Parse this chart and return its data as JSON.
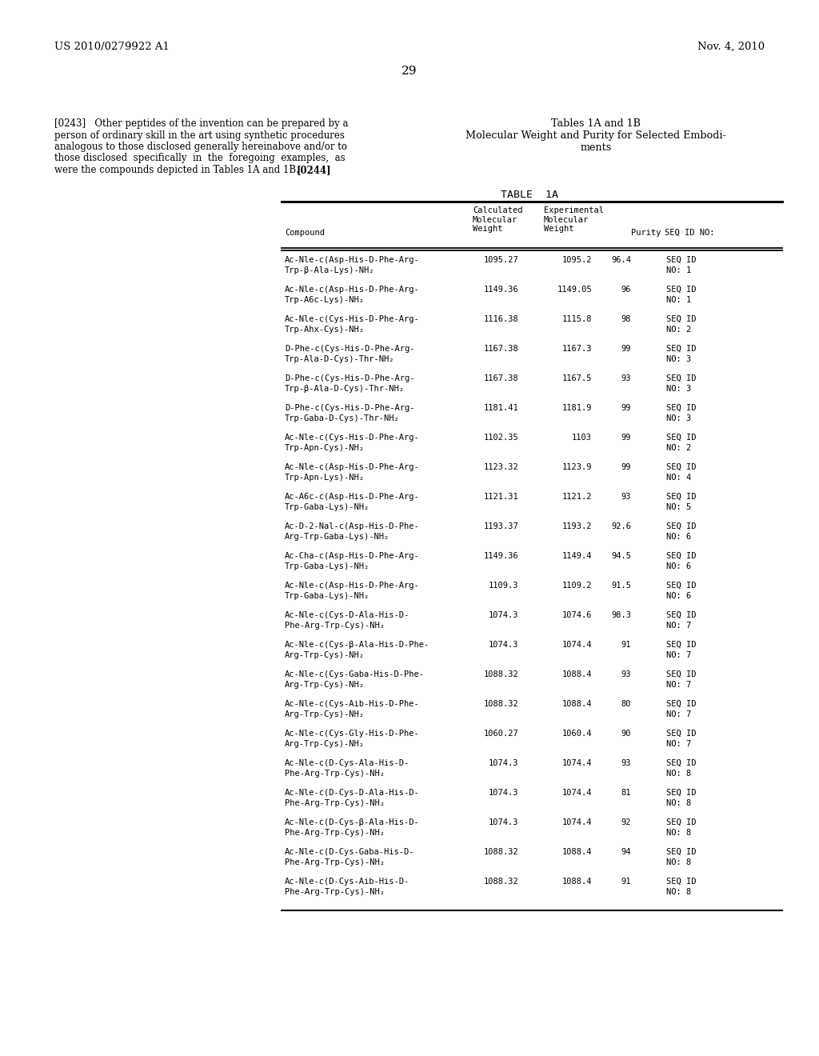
{
  "header_left": "US 2010/0279922 A1",
  "header_right": "Nov. 4, 2010",
  "page_number": "29",
  "para243_lines": [
    "[0243]   Other peptides of the invention can be prepared by a",
    "person of ordinary skill in the art using synthetic procedures",
    "analogous to those disclosed generally hereinabove and/or to",
    "those disclosed  specifically  in  the  foregoing  examples,  as",
    "were the compounds depicted in Tables 1A and 1B."
  ],
  "para244": "[0244]",
  "right_title1": "Tables 1A and 1B",
  "right_title2a": "Molecular Weight and Purity for Selected Embodi-",
  "right_title2b": "ments",
  "table_title": "TABLE  1A",
  "rows": [
    [
      "Ac-Nle-c(Asp-His-D-Phe-Arg-",
      "Trp-β-Ala-Lys)-NH₂",
      "1095.27",
      "1095.2",
      "96.4",
      "SEQ ID",
      "NO: 1"
    ],
    [
      "Ac-Nle-c(Asp-His-D-Phe-Arg-",
      "Trp-A6c-Lys)-NH₂",
      "1149.36",
      "1149.05",
      "96",
      "SEQ ID",
      "NO: 1"
    ],
    [
      "Ac-Nle-c(Cys-His-D-Phe-Arg-",
      "Trp-Ahx-Cys)-NH₂",
      "1116.38",
      "1115.8",
      "98",
      "SEQ ID",
      "NO: 2"
    ],
    [
      "D-Phe-c(Cys-His-D-Phe-Arg-",
      "Trp-Ala-D-Cys)-Thr-NH₂",
      "1167.38",
      "1167.3",
      "99",
      "SEQ ID",
      "NO: 3"
    ],
    [
      "D-Phe-c(Cys-His-D-Phe-Arg-",
      "Trp-β-Ala-D-Cys)-Thr-NH₂",
      "1167.38",
      "1167.5",
      "93",
      "SEQ ID",
      "NO: 3"
    ],
    [
      "D-Phe-c(Cys-His-D-Phe-Arg-",
      "Trp-Gaba-D-Cys)-Thr-NH₂",
      "1181.41",
      "1181.9",
      "99",
      "SEQ ID",
      "NO: 3"
    ],
    [
      "Ac-Nle-c(Cys-His-D-Phe-Arg-",
      "Trp-Apn-Cys)-NH₂",
      "1102.35",
      "1103",
      "99",
      "SEQ ID",
      "NO: 2"
    ],
    [
      "Ac-Nle-c(Asp-His-D-Phe-Arg-",
      "Trp-Apn-Lys)-NH₂",
      "1123.32",
      "1123.9",
      "99",
      "SEQ ID",
      "NO: 4"
    ],
    [
      "Ac-A6c-c(Asp-His-D-Phe-Arg-",
      "Trp-Gaba-Lys)-NH₂",
      "1121.31",
      "1121.2",
      "93",
      "SEQ ID",
      "NO: 5"
    ],
    [
      "Ac-D-2-Nal-c(Asp-His-D-Phe-",
      "Arg-Trp-Gaba-Lys)-NH₂",
      "1193.37",
      "1193.2",
      "92.6",
      "SEQ ID",
      "NO: 6"
    ],
    [
      "Ac-Cha-c(Asp-His-D-Phe-Arg-",
      "Trp-Gaba-Lys)-NH₂",
      "1149.36",
      "1149.4",
      "94.5",
      "SEQ ID",
      "NO: 6"
    ],
    [
      "Ac-Nle-c(Asp-His-D-Phe-Arg-",
      "Trp-Gaba-Lys)-NH₂",
      "1109.3",
      "1109.2",
      "91.5",
      "SEQ ID",
      "NO: 6"
    ],
    [
      "Ac-Nle-c(Cys-D-Ala-His-D-",
      "Phe-Arg-Trp-Cys)-NH₂",
      "1074.3",
      "1074.6",
      "98.3",
      "SEQ ID",
      "NO: 7"
    ],
    [
      "Ac-Nle-c(Cys-β-Ala-His-D-Phe-",
      "Arg-Trp-Cys)-NH₂",
      "1074.3",
      "1074.4",
      "91",
      "SEQ ID",
      "NO: 7"
    ],
    [
      "Ac-Nle-c(Cys-Gaba-His-D-Phe-",
      "Arg-Trp-Cys)-NH₂",
      "1088.32",
      "1088.4",
      "93",
      "SEQ ID",
      "NO: 7"
    ],
    [
      "Ac-Nle-c(Cys-Aib-His-D-Phe-",
      "Arg-Trp-Cys)-NH₂",
      "1088.32",
      "1088.4",
      "80",
      "SEQ ID",
      "NO: 7"
    ],
    [
      "Ac-Nle-c(Cys-Gly-His-D-Phe-",
      "Arg-Trp-Cys)-NH₂",
      "1060.27",
      "1060.4",
      "90",
      "SEQ ID",
      "NO: 7"
    ],
    [
      "Ac-Nle-c(D-Cys-Ala-His-D-",
      "Phe-Arg-Trp-Cys)-NH₂",
      "1074.3",
      "1074.4",
      "93",
      "SEQ ID",
      "NO: 8"
    ],
    [
      "Ac-Nle-c(D-Cys-D-Ala-His-D-",
      "Phe-Arg-Trp-Cys)-NH₂",
      "1074.3",
      "1074.4",
      "81",
      "SEQ ID",
      "NO: 8"
    ],
    [
      "Ac-Nle-c(D-Cys-β-Ala-His-D-",
      "Phe-Arg-Trp-Cys)-NH₂",
      "1074.3",
      "1074.4",
      "92",
      "SEQ ID",
      "NO: 8"
    ],
    [
      "Ac-Nle-c(D-Cys-Gaba-His-D-",
      "Phe-Arg-Trp-Cys)-NH₂",
      "1088.32",
      "1088.4",
      "94",
      "SEQ ID",
      "NO: 8"
    ],
    [
      "Ac-Nle-c(D-Cys-Aib-His-D-",
      "Phe-Arg-Trp-Cys)-NH₂",
      "1088.32",
      "1088.4",
      "91",
      "SEQ ID",
      "NO: 8"
    ]
  ],
  "bg_color": "#ffffff"
}
